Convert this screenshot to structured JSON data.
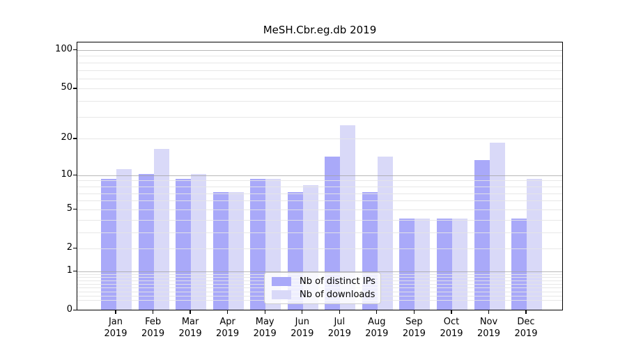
{
  "title": "MeSH.Cbr.eg.db 2019",
  "legend": {
    "items": [
      {
        "label": "Nb of distinct IPs",
        "color": "#a9a9f9"
      },
      {
        "label": "Nb of downloads",
        "color": "#d9d9f8"
      }
    ]
  },
  "chart_data": {
    "type": "bar",
    "title": "MeSH.Cbr.eg.db 2019",
    "categories": [
      "Jan",
      "Feb",
      "Mar",
      "Apr",
      "May",
      "Jun",
      "Jul",
      "Aug",
      "Sep",
      "Oct",
      "Nov",
      "Dec"
    ],
    "year": "2019",
    "series": [
      {
        "name": "Nb of distinct IPs",
        "color": "#a9a9f9",
        "values": [
          9,
          10,
          9,
          7,
          9,
          7,
          14,
          7,
          4,
          4,
          13,
          4
        ]
      },
      {
        "name": "Nb of downloads",
        "color": "#d9d9f8",
        "values": [
          11,
          16,
          10,
          7,
          9,
          8,
          25,
          14,
          4,
          4,
          18,
          9
        ]
      }
    ],
    "xlabel": "",
    "ylabel": "",
    "y_axis": {
      "scale": "log1p",
      "tick_values": [
        100,
        50,
        20,
        10,
        5,
        2,
        1,
        0
      ],
      "tick_labels": [
        "100",
        "50",
        "20",
        "10",
        "5",
        "2",
        "1",
        "0"
      ],
      "major_gridlines": [
        100,
        10,
        1
      ],
      "minor_gridlines": [
        0.2,
        0.3,
        0.4,
        0.5,
        0.6,
        0.7,
        0.8,
        0.9,
        2,
        3,
        4,
        5,
        6,
        7,
        8,
        9,
        20,
        30,
        40,
        50,
        60,
        70,
        80,
        90
      ],
      "ylim": [
        0,
        120
      ]
    },
    "grid": true,
    "legend_position": "lower center"
  }
}
